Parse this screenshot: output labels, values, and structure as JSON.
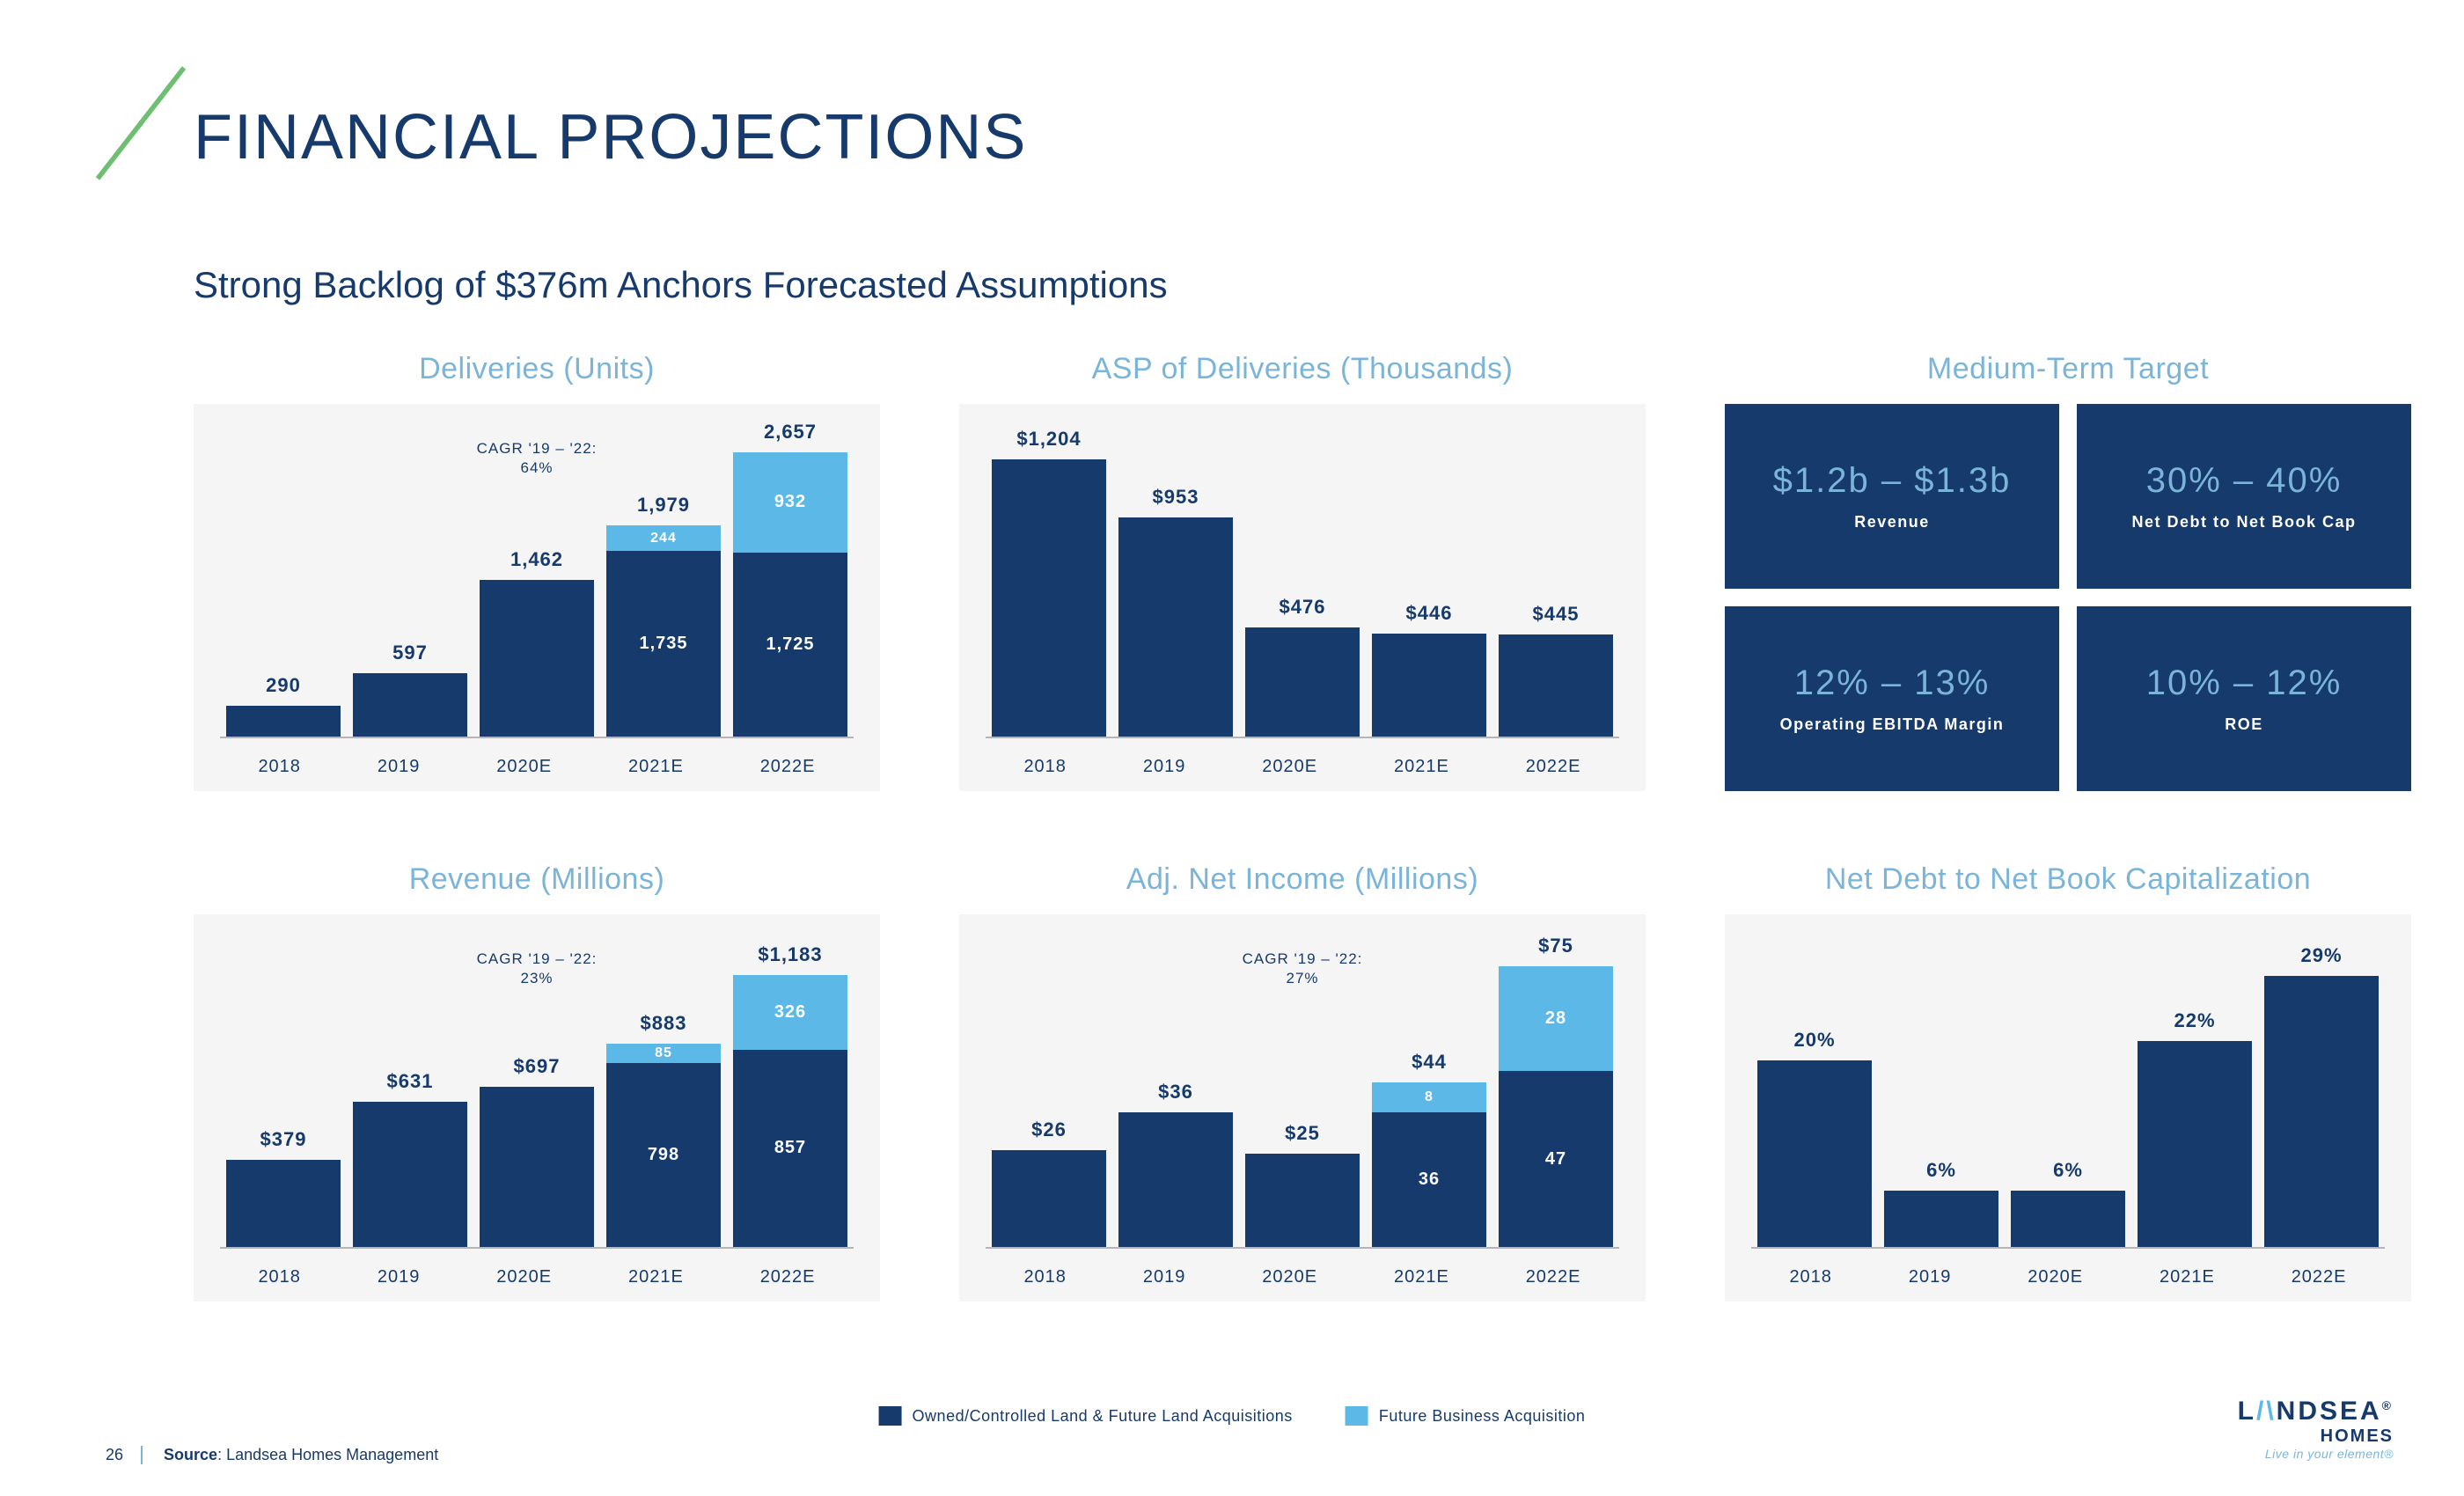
{
  "title": "FINANCIAL PROJECTIONS",
  "subtitle": "Strong Backlog of $376m Anchors Forecasted Assumptions",
  "colors": {
    "primary": "#163a6b",
    "secondary": "#5cb8e6",
    "light_accent": "#7ab5d9",
    "chart_bg": "#f5f5f5",
    "axis": "#b5b5b5",
    "slash": "#6fbf73"
  },
  "x_categories": [
    "2018",
    "2019",
    "2020E",
    "2021E",
    "2022E"
  ],
  "charts": {
    "deliveries": {
      "title": "Deliveries (Units)",
      "cagr": "CAGR '19 – '22:\n64%",
      "max": 2800,
      "bars": [
        {
          "total": "290",
          "segments": [
            {
              "v": 290,
              "l": "",
              "c": "#163a6b"
            }
          ]
        },
        {
          "total": "597",
          "segments": [
            {
              "v": 597,
              "l": "",
              "c": "#163a6b"
            }
          ]
        },
        {
          "total": "1,462",
          "segments": [
            {
              "v": 1462,
              "l": "",
              "c": "#163a6b"
            }
          ]
        },
        {
          "total": "1,979",
          "segments": [
            {
              "v": 1735,
              "l": "1,735",
              "c": "#163a6b"
            },
            {
              "v": 244,
              "l": "244",
              "c": "#5cb8e6",
              "sm": true
            }
          ]
        },
        {
          "total": "2,657",
          "segments": [
            {
              "v": 1725,
              "l": "1,725",
              "c": "#163a6b"
            },
            {
              "v": 932,
              "l": "932",
              "c": "#5cb8e6"
            }
          ]
        }
      ]
    },
    "asp": {
      "title": "ASP of Deliveries (Thousands)",
      "max": 1300,
      "bars": [
        {
          "total": "$1,204",
          "segments": [
            {
              "v": 1204,
              "l": "",
              "c": "#163a6b"
            }
          ]
        },
        {
          "total": "$953",
          "segments": [
            {
              "v": 953,
              "l": "",
              "c": "#163a6b"
            }
          ]
        },
        {
          "total": "$476",
          "segments": [
            {
              "v": 476,
              "l": "",
              "c": "#163a6b"
            }
          ]
        },
        {
          "total": "$446",
          "segments": [
            {
              "v": 446,
              "l": "",
              "c": "#163a6b"
            }
          ]
        },
        {
          "total": "$445",
          "segments": [
            {
              "v": 445,
              "l": "",
              "c": "#163a6b"
            }
          ]
        }
      ]
    },
    "revenue": {
      "title": "Revenue (Millions)",
      "cagr": "CAGR '19 – '22:\n23%",
      "max": 1300,
      "bars": [
        {
          "total": "$379",
          "segments": [
            {
              "v": 379,
              "l": "",
              "c": "#163a6b"
            }
          ]
        },
        {
          "total": "$631",
          "segments": [
            {
              "v": 631,
              "l": "",
              "c": "#163a6b"
            }
          ]
        },
        {
          "total": "$697",
          "segments": [
            {
              "v": 697,
              "l": "",
              "c": "#163a6b"
            }
          ]
        },
        {
          "total": "$883",
          "segments": [
            {
              "v": 798,
              "l": "798",
              "c": "#163a6b"
            },
            {
              "v": 85,
              "l": "85",
              "c": "#5cb8e6",
              "sm": true
            }
          ]
        },
        {
          "total": "$1,183",
          "segments": [
            {
              "v": 857,
              "l": "857",
              "c": "#163a6b"
            },
            {
              "v": 326,
              "l": "326",
              "c": "#5cb8e6"
            }
          ]
        }
      ]
    },
    "netincome": {
      "title": "Adj. Net Income (Millions)",
      "cagr": "CAGR '19 – '22:\n27%",
      "max": 80,
      "bars": [
        {
          "total": "$26",
          "segments": [
            {
              "v": 26,
              "l": "",
              "c": "#163a6b"
            }
          ]
        },
        {
          "total": "$36",
          "segments": [
            {
              "v": 36,
              "l": "",
              "c": "#163a6b"
            }
          ]
        },
        {
          "total": "$25",
          "segments": [
            {
              "v": 25,
              "l": "",
              "c": "#163a6b"
            }
          ]
        },
        {
          "total": "$44",
          "segments": [
            {
              "v": 36,
              "l": "36",
              "c": "#163a6b"
            },
            {
              "v": 8,
              "l": "8",
              "c": "#5cb8e6",
              "sm": true
            }
          ]
        },
        {
          "total": "$75",
          "segments": [
            {
              "v": 47,
              "l": "47",
              "c": "#163a6b"
            },
            {
              "v": 28,
              "l": "28",
              "c": "#5cb8e6"
            }
          ]
        }
      ]
    },
    "netdebt": {
      "title": "Net Debt to Net Book Capitalization",
      "max": 32,
      "bars": [
        {
          "total": "20%",
          "segments": [
            {
              "v": 20,
              "l": "",
              "c": "#163a6b"
            }
          ]
        },
        {
          "total": "6%",
          "segments": [
            {
              "v": 6,
              "l": "",
              "c": "#163a6b"
            }
          ]
        },
        {
          "total": "6%",
          "segments": [
            {
              "v": 6,
              "l": "",
              "c": "#163a6b"
            }
          ]
        },
        {
          "total": "22%",
          "segments": [
            {
              "v": 22,
              "l": "",
              "c": "#163a6b"
            }
          ]
        },
        {
          "total": "29%",
          "segments": [
            {
              "v": 29,
              "l": "",
              "c": "#163a6b"
            }
          ]
        }
      ]
    }
  },
  "targets": {
    "title": "Medium-Term Target",
    "boxes": [
      {
        "big": "$1.2b – $1.3b",
        "small": "Revenue"
      },
      {
        "big": "30% – 40%",
        "small": "Net Debt to Net Book Cap"
      },
      {
        "big": "12% – 13%",
        "small": "Operating EBITDA Margin"
      },
      {
        "big": "10% – 12%",
        "small": "ROE"
      }
    ]
  },
  "legend": [
    {
      "color": "#163a6b",
      "label": "Owned/Controlled Land & Future Land Acquisitions"
    },
    {
      "color": "#5cb8e6",
      "label": "Future Business Acquisition"
    }
  ],
  "footer": {
    "page": "26",
    "source_prefix": "Source",
    "source_text": ": Landsea Homes Management"
  },
  "logo": {
    "brand_left": "L",
    "brand_accent": "/\\",
    "brand_right": "NDSEA",
    "reg": "®",
    "sub": "HOMES",
    "tag": "Live in your element®"
  }
}
